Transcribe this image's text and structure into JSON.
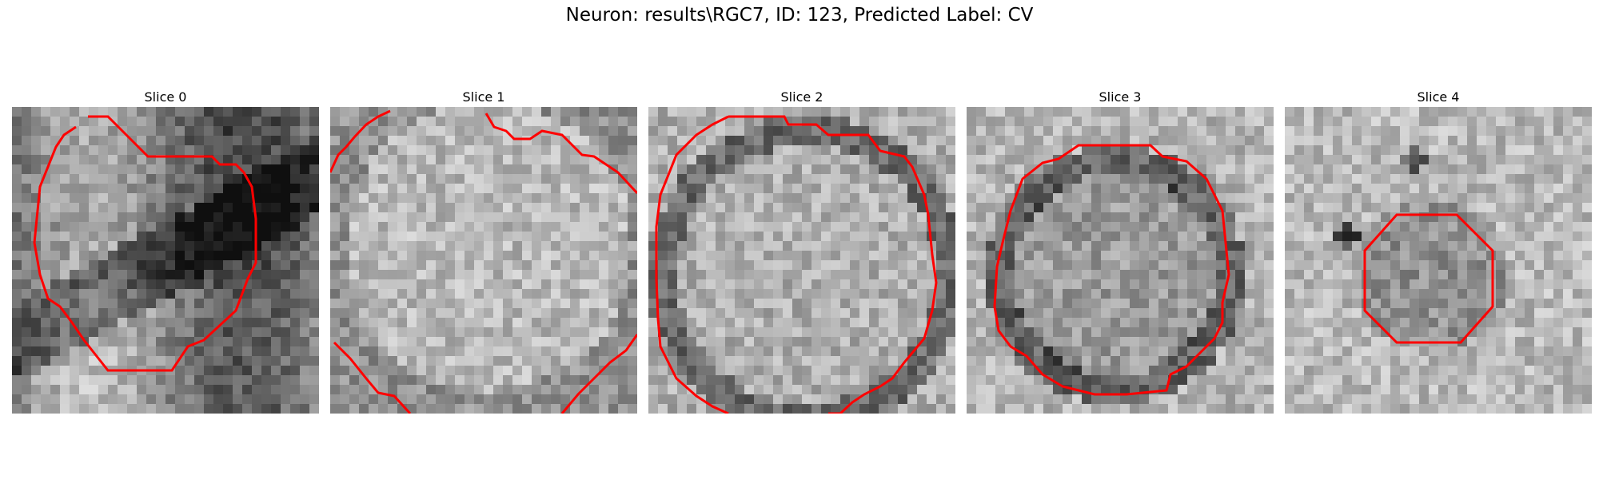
{
  "figure": {
    "title": "Neuron: results\\RGC7, ID: 123, Predicted Label: CV",
    "contour_color": "#ff0000"
  },
  "panels": [
    {
      "title": "Slice 0"
    },
    {
      "title": "Slice 1"
    },
    {
      "title": "Slice 2"
    },
    {
      "title": "Slice 3"
    },
    {
      "title": "Slice 4"
    }
  ]
}
